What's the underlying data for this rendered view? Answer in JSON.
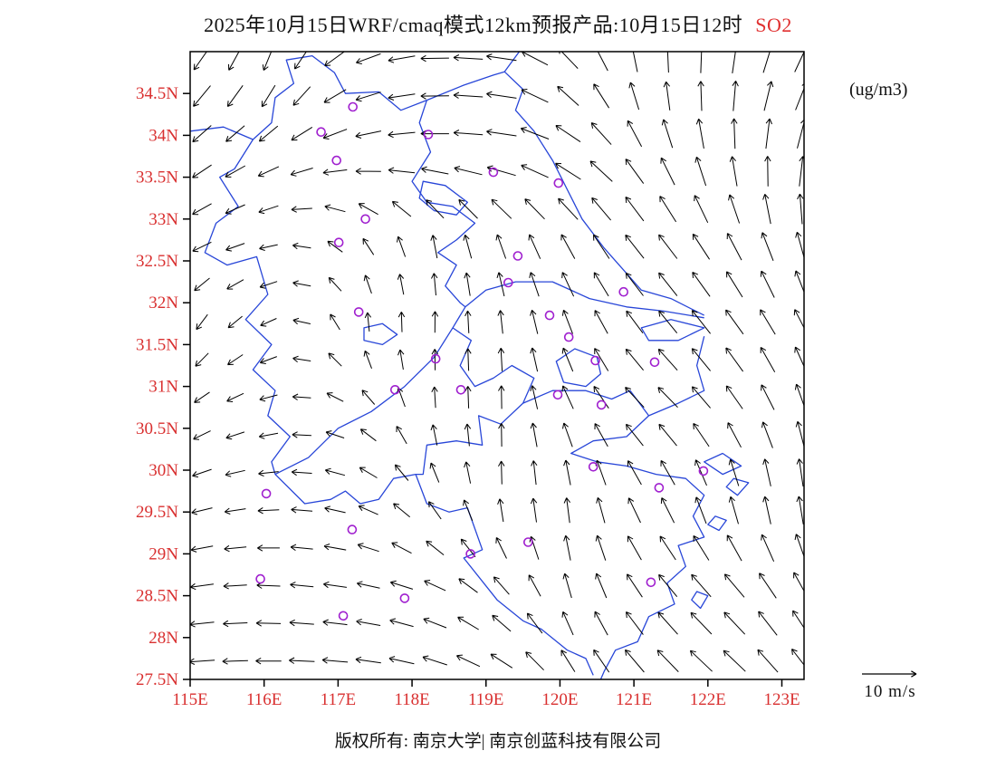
{
  "title": {
    "main": "2025年10月15日WRF/cmaq模式12km预报产品:10月15日12时",
    "pollutant": "SO2"
  },
  "units_label": "(ug/m3)",
  "scale": {
    "label": "10 m/s"
  },
  "footer": {
    "copyright": "版权所有: 南京大学| 南京创蓝科技有限公司"
  },
  "colors": {
    "axis_label": "#d93030",
    "map_line": "#2846d8",
    "marker": "#a020cf",
    "vector": "#000000",
    "title_accent": "#e02f2f"
  },
  "chart_data": {
    "type": "map-vector",
    "title": "2025年10月15日WRF/cmaq模式12km预报产品:10月15日12时 SO2",
    "units": "ug/m3",
    "lon_range": [
      115,
      123.3
    ],
    "lat_range": [
      27.5,
      35.0
    ],
    "x_ticks": {
      "labels": [
        "115E",
        "116E",
        "117E",
        "118E",
        "119E",
        "120E",
        "121E",
        "122E",
        "123E"
      ],
      "values": [
        115,
        116,
        117,
        118,
        119,
        120,
        121,
        122,
        123
      ]
    },
    "y_ticks": {
      "labels": [
        "34.5N",
        "34N",
        "33.5N",
        "33N",
        "32.5N",
        "32N",
        "31.5N",
        "31N",
        "30.5N",
        "30N",
        "29.5N",
        "29N",
        "28.5N",
        "28N",
        "27.5N"
      ],
      "values": [
        34.5,
        34,
        33.5,
        33,
        32.5,
        32,
        31.5,
        31,
        30.5,
        30,
        29.5,
        29,
        28.5,
        28,
        27.5
      ]
    },
    "reference_vector": {
      "label": "10 m/s",
      "speed_ms": 10
    },
    "wind_field": {
      "grid_lons": [
        115.2,
        116.2,
        117.2,
        118.2,
        119.2,
        120.2,
        121.2,
        122.2,
        123.2
      ],
      "grid_lats": [
        34.7,
        33.7,
        32.7,
        31.7,
        30.7,
        29.7,
        28.7,
        27.7
      ],
      "arrow_step_deg": 0.45,
      "angles_deg": [
        [
          235,
          250,
          205,
          182,
          172,
          130,
          95,
          85,
          65
        ],
        [
          215,
          205,
          190,
          180,
          172,
          150,
          120,
          100,
          80
        ],
        [
          205,
          190,
          130,
          100,
          110,
          120,
          130,
          120,
          105
        ],
        [
          235,
          200,
          95,
          88,
          95,
          112,
          130,
          128,
          118
        ],
        [
          210,
          190,
          150,
          95,
          90,
          118,
          138,
          128,
          108
        ],
        [
          195,
          182,
          162,
          122,
          92,
          96,
          118,
          102,
          95
        ],
        [
          188,
          176,
          170,
          158,
          130,
          102,
          128,
          132,
          118
        ],
        [
          184,
          179,
          174,
          164,
          148,
          120,
          133,
          138,
          128
        ]
      ],
      "magnitudes": [
        [
          0.8,
          0.7,
          0.7,
          0.8,
          0.9,
          0.8,
          0.8,
          0.9,
          0.9
        ],
        [
          0.6,
          0.6,
          0.7,
          0.8,
          0.9,
          0.9,
          0.9,
          0.9,
          0.9
        ],
        [
          0.5,
          0.4,
          0.4,
          0.6,
          0.7,
          0.8,
          0.9,
          0.9,
          0.9
        ],
        [
          0.4,
          0.35,
          0.4,
          0.5,
          0.6,
          0.7,
          0.8,
          0.9,
          0.8
        ],
        [
          0.4,
          0.4,
          0.4,
          0.5,
          0.6,
          0.7,
          0.8,
          0.8,
          0.8
        ],
        [
          0.5,
          0.5,
          0.5,
          0.5,
          0.6,
          0.7,
          0.8,
          0.8,
          0.8
        ],
        [
          0.6,
          0.6,
          0.6,
          0.6,
          0.6,
          0.7,
          0.8,
          0.9,
          0.9
        ],
        [
          0.7,
          0.7,
          0.7,
          0.7,
          0.7,
          0.7,
          0.9,
          0.9,
          0.9
        ]
      ]
    },
    "city_markers": [
      [
        117.2,
        34.34
      ],
      [
        116.77,
        34.04
      ],
      [
        118.22,
        34.01
      ],
      [
        116.98,
        33.7
      ],
      [
        119.1,
        33.56
      ],
      [
        119.98,
        33.43
      ],
      [
        117.37,
        33.0
      ],
      [
        117.01,
        32.72
      ],
      [
        119.43,
        32.56
      ],
      [
        119.3,
        32.24
      ],
      [
        120.86,
        32.13
      ],
      [
        117.28,
        31.89
      ],
      [
        119.86,
        31.85
      ],
      [
        120.12,
        31.59
      ],
      [
        118.32,
        31.33
      ],
      [
        120.48,
        31.31
      ],
      [
        121.28,
        31.29
      ],
      [
        117.77,
        30.96
      ],
      [
        118.66,
        30.96
      ],
      [
        119.97,
        30.9
      ],
      [
        120.56,
        30.78
      ],
      [
        120.45,
        30.04
      ],
      [
        121.94,
        29.99
      ],
      [
        121.34,
        29.79
      ],
      [
        116.03,
        29.72
      ],
      [
        117.19,
        29.29
      ],
      [
        119.57,
        29.14
      ],
      [
        118.79,
        29.0
      ],
      [
        115.95,
        28.7
      ],
      [
        121.23,
        28.66
      ],
      [
        117.9,
        28.47
      ],
      [
        117.07,
        28.26
      ]
    ],
    "boundaries": {
      "polylines": [
        [
          [
            115.0,
            34.05
          ],
          [
            115.45,
            34.1
          ],
          [
            115.85,
            33.95
          ],
          [
            116.1,
            34.15
          ],
          [
            116.15,
            34.45
          ],
          [
            116.4,
            34.62
          ],
          [
            116.3,
            34.9
          ],
          [
            116.65,
            34.95
          ],
          [
            116.95,
            34.75
          ],
          [
            117.1,
            34.5
          ],
          [
            117.55,
            34.52
          ],
          [
            117.85,
            34.3
          ],
          [
            118.2,
            34.42
          ],
          [
            118.7,
            34.6
          ],
          [
            119.1,
            34.72
          ],
          [
            119.25,
            34.76
          ]
        ],
        [
          [
            119.45,
            35.0
          ],
          [
            119.3,
            34.82
          ],
          [
            119.25,
            34.76
          ],
          [
            119.5,
            34.55
          ],
          [
            119.4,
            34.3
          ],
          [
            119.65,
            34.05
          ],
          [
            119.9,
            33.7
          ],
          [
            120.1,
            33.35
          ],
          [
            120.3,
            33.0
          ],
          [
            120.6,
            32.65
          ],
          [
            120.85,
            32.4
          ],
          [
            121.1,
            32.15
          ],
          [
            121.5,
            32.05
          ],
          [
            121.95,
            31.85
          ]
        ],
        [
          [
            121.95,
            31.82
          ],
          [
            121.4,
            31.9
          ],
          [
            120.9,
            31.95
          ],
          [
            120.4,
            32.05
          ],
          [
            119.9,
            32.25
          ],
          [
            119.4,
            32.25
          ],
          [
            119.0,
            32.15
          ],
          [
            118.72,
            31.95
          ],
          [
            118.55,
            31.7
          ],
          [
            118.3,
            31.35
          ],
          [
            117.9,
            31.0
          ],
          [
            117.45,
            30.7
          ],
          [
            117.0,
            30.5
          ],
          [
            116.6,
            30.15
          ],
          [
            116.15,
            29.95
          ]
        ],
        [
          [
            121.95,
            31.6
          ],
          [
            121.85,
            31.25
          ],
          [
            121.95,
            30.95
          ],
          [
            121.6,
            30.8
          ],
          [
            121.2,
            30.65
          ],
          [
            120.9,
            30.4
          ],
          [
            120.45,
            30.35
          ],
          [
            120.15,
            30.2
          ],
          [
            120.5,
            30.1
          ],
          [
            120.9,
            30.05
          ],
          [
            121.3,
            29.95
          ],
          [
            121.7,
            29.9
          ],
          [
            121.95,
            29.7
          ],
          [
            121.8,
            29.45
          ],
          [
            121.95,
            29.2
          ],
          [
            121.6,
            29.1
          ],
          [
            121.7,
            28.85
          ],
          [
            121.45,
            28.65
          ],
          [
            121.55,
            28.4
          ],
          [
            121.2,
            28.25
          ],
          [
            121.05,
            27.95
          ],
          [
            120.75,
            27.85
          ],
          [
            120.6,
            27.6
          ],
          [
            120.55,
            27.5
          ]
        ],
        [
          [
            115.85,
            33.95
          ],
          [
            115.6,
            33.6
          ],
          [
            115.4,
            33.5
          ],
          [
            115.65,
            33.15
          ],
          [
            115.35,
            32.95
          ],
          [
            115.2,
            32.6
          ],
          [
            115.5,
            32.45
          ],
          [
            115.9,
            32.55
          ],
          [
            116.05,
            32.1
          ],
          [
            115.75,
            31.8
          ],
          [
            116.1,
            31.5
          ],
          [
            115.85,
            31.2
          ],
          [
            116.15,
            30.95
          ],
          [
            116.05,
            30.65
          ],
          [
            116.35,
            30.4
          ],
          [
            116.1,
            30.1
          ],
          [
            116.15,
            29.95
          ]
        ],
        [
          [
            116.15,
            29.95
          ],
          [
            116.55,
            29.6
          ],
          [
            116.9,
            29.65
          ],
          [
            117.1,
            29.75
          ],
          [
            117.3,
            29.6
          ],
          [
            117.55,
            29.65
          ],
          [
            117.75,
            29.9
          ],
          [
            118.05,
            29.95
          ],
          [
            118.2,
            29.6
          ],
          [
            118.5,
            29.5
          ],
          [
            118.75,
            29.55
          ],
          [
            118.95,
            29.05
          ],
          [
            118.7,
            28.95
          ],
          [
            119.15,
            28.45
          ],
          [
            119.5,
            28.2
          ],
          [
            119.75,
            28.1
          ],
          [
            120.1,
            27.85
          ],
          [
            120.35,
            27.75
          ],
          [
            120.45,
            27.55
          ]
        ],
        [
          [
            118.2,
            34.42
          ],
          [
            118.1,
            34.15
          ],
          [
            118.25,
            33.8
          ],
          [
            118.0,
            33.45
          ],
          [
            118.2,
            33.2
          ],
          [
            118.55,
            33.15
          ],
          [
            118.85,
            32.95
          ],
          [
            118.6,
            32.75
          ],
          [
            118.35,
            32.6
          ],
          [
            118.6,
            32.45
          ],
          [
            118.45,
            32.2
          ],
          [
            118.65,
            32.0
          ],
          [
            118.72,
            31.95
          ]
        ],
        [
          [
            118.55,
            31.7
          ],
          [
            118.8,
            31.55
          ],
          [
            118.65,
            31.25
          ],
          [
            118.85,
            31.0
          ],
          [
            119.1,
            31.1
          ],
          [
            119.35,
            31.25
          ],
          [
            119.65,
            31.1
          ],
          [
            119.5,
            30.8
          ]
        ],
        [
          [
            119.5,
            30.8
          ],
          [
            119.9,
            30.95
          ],
          [
            120.35,
            30.95
          ],
          [
            120.7,
            30.85
          ],
          [
            120.95,
            30.95
          ],
          [
            121.2,
            30.65
          ]
        ],
        [
          [
            119.5,
            30.8
          ],
          [
            119.2,
            30.55
          ],
          [
            118.9,
            30.65
          ],
          [
            118.95,
            30.3
          ],
          [
            118.6,
            30.35
          ],
          [
            118.2,
            30.3
          ],
          [
            118.15,
            29.95
          ],
          [
            118.05,
            29.95
          ]
        ]
      ],
      "closed": [
        [
          [
            118.15,
            33.45
          ],
          [
            118.45,
            33.4
          ],
          [
            118.75,
            33.2
          ],
          [
            118.6,
            33.05
          ],
          [
            118.3,
            33.1
          ],
          [
            118.1,
            33.25
          ]
        ],
        [
          [
            119.95,
            31.3
          ],
          [
            120.2,
            31.45
          ],
          [
            120.5,
            31.35
          ],
          [
            120.55,
            31.15
          ],
          [
            120.35,
            31.0
          ],
          [
            120.05,
            31.05
          ]
        ],
        [
          [
            117.35,
            31.7
          ],
          [
            117.6,
            31.75
          ],
          [
            117.8,
            31.62
          ],
          [
            117.6,
            31.5
          ],
          [
            117.35,
            31.55
          ]
        ],
        [
          [
            121.1,
            31.7
          ],
          [
            121.5,
            31.8
          ],
          [
            121.95,
            31.7
          ],
          [
            121.6,
            31.55
          ],
          [
            121.2,
            31.55
          ]
        ],
        [
          [
            121.95,
            30.1
          ],
          [
            122.2,
            30.2
          ],
          [
            122.45,
            30.05
          ],
          [
            122.2,
            29.95
          ]
        ],
        [
          [
            122.35,
            29.9
          ],
          [
            122.55,
            29.85
          ],
          [
            122.4,
            29.7
          ],
          [
            122.25,
            29.8
          ]
        ],
        [
          [
            122.1,
            29.45
          ],
          [
            122.25,
            29.4
          ],
          [
            122.15,
            29.28
          ],
          [
            122.0,
            29.35
          ]
        ],
        [
          [
            121.85,
            28.55
          ],
          [
            122.0,
            28.5
          ],
          [
            121.9,
            28.35
          ],
          [
            121.78,
            28.45
          ]
        ]
      ]
    }
  }
}
